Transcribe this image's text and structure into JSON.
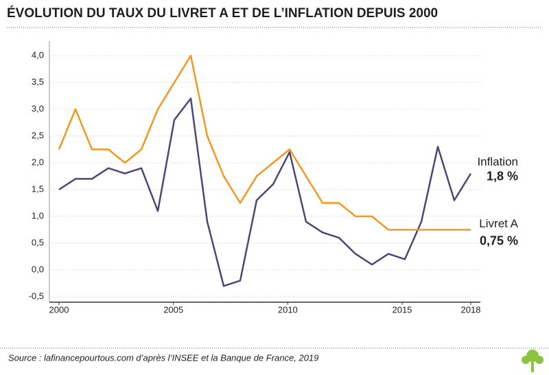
{
  "chart_data": {
    "type": "line",
    "title": "ÉVOLUTION DU TAUX DU LIVRET A ET DE L’INFLATION DEPUIS 2000",
    "x": [
      2000,
      2000.72,
      2001.44,
      2002.16,
      2002.88,
      2003.6,
      2004.32,
      2005.04,
      2005.76,
      2006.48,
      2007.2,
      2007.92,
      2008.64,
      2009.36,
      2010.08,
      2010.8,
      2011.52,
      2012.24,
      2012.96,
      2013.68,
      2014.4,
      2015.12,
      2015.84,
      2016.56,
      2017.28,
      2018
    ],
    "series": [
      {
        "name": "Inflation",
        "color": "#4d4577",
        "values": [
          1.5,
          1.7,
          1.7,
          1.9,
          1.8,
          1.9,
          1.1,
          2.8,
          3.2,
          0.9,
          -0.3,
          -0.2,
          1.3,
          1.6,
          2.2,
          0.9,
          0.7,
          0.6,
          0.3,
          0.1,
          0.3,
          0.2,
          0.9,
          2.3,
          1.3,
          1.8
        ],
        "end_label": "1,8 %"
      },
      {
        "name": "Livret A",
        "color": "#f5961e",
        "values": [
          2.25,
          3.0,
          2.25,
          2.25,
          2.0,
          2.25,
          3.0,
          3.5,
          4.0,
          2.5,
          1.75,
          1.25,
          1.75,
          2.0,
          2.25,
          1.75,
          1.25,
          1.25,
          1.0,
          1.0,
          0.75,
          0.75,
          0.75,
          0.75,
          0.75,
          0.75
        ],
        "end_label": "0,75 %"
      }
    ],
    "xlim": [
      2000,
      2018
    ],
    "xticks": [
      2000,
      2005,
      2010,
      2015,
      2018
    ],
    "ylim": [
      -0.5,
      4.0
    ],
    "yticks": [
      {
        "value": -0.5,
        "label": "-0,5"
      },
      {
        "value": 0,
        "label": "0,0"
      },
      {
        "value": 0.5,
        "label": "0,5"
      },
      {
        "value": 1,
        "label": "1,0"
      },
      {
        "value": 1.5,
        "label": "1,5"
      },
      {
        "value": 2,
        "label": "2,0"
      },
      {
        "value": 2.5,
        "label": "2,5"
      },
      {
        "value": 3,
        "label": "3,0"
      },
      {
        "value": 3.5,
        "label": "3,5"
      },
      {
        "value": 4,
        "label": "4,0"
      }
    ],
    "grid": true,
    "source": "Source : lafinancepourtous.com d’après l’INSEE et la Banque de France, 2019"
  }
}
